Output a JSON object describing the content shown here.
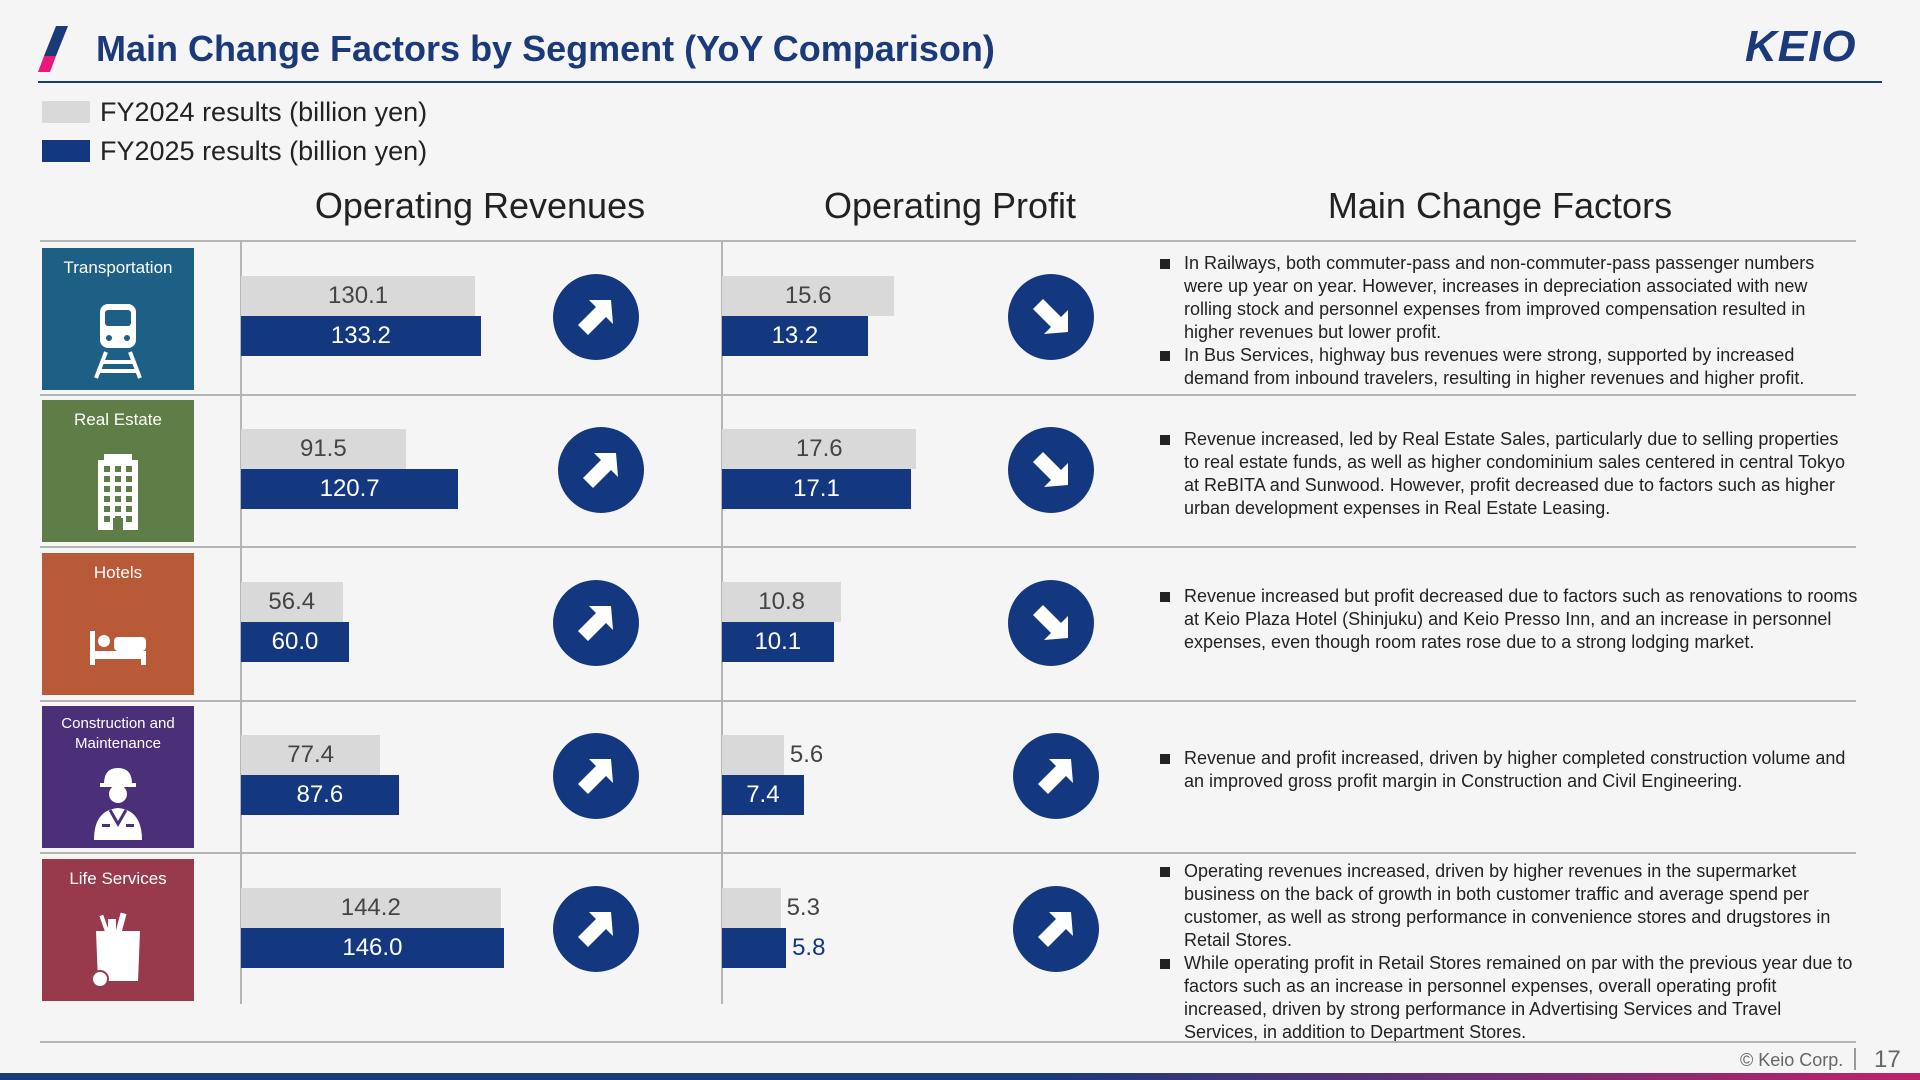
{
  "header": {
    "title": "Main Change Factors by Segment (YoY Comparison)",
    "logo_text": "KEIO"
  },
  "legend": [
    {
      "label": "FY2024 results (billion yen)",
      "color": "#d9d9d9"
    },
    {
      "label": "FY2025 results (billion yen)",
      "color": "#14387f"
    }
  ],
  "columns": {
    "revenues": "Operating Revenues",
    "profit": "Operating Profit",
    "factors": "Main Change Factors"
  },
  "chart_data": {
    "type": "bar",
    "orientation": "horizontal",
    "categories": [
      "Transportation",
      "Real Estate",
      "Hotels",
      "Construction and Maintenance",
      "Life Services"
    ],
    "operating_revenues": {
      "series": [
        {
          "name": "FY2024 results (billion yen)",
          "values": [
            130.1,
            91.5,
            56.4,
            77.4,
            144.2
          ]
        },
        {
          "name": "FY2025 results (billion yen)",
          "values": [
            133.2,
            120.7,
            60.0,
            87.6,
            146.0
          ]
        }
      ],
      "direction": [
        "up",
        "up",
        "up",
        "up",
        "up"
      ]
    },
    "operating_profit": {
      "series": [
        {
          "name": "FY2024 results (billion yen)",
          "values": [
            15.6,
            17.6,
            10.8,
            5.6,
            5.3
          ]
        },
        {
          "name": "FY2025 results (billion yen)",
          "values": [
            13.2,
            17.1,
            10.1,
            7.4,
            5.8
          ]
        }
      ],
      "direction": [
        "down",
        "down",
        "down",
        "up",
        "up"
      ]
    }
  },
  "segments": [
    {
      "label": "Transportation",
      "color": "#1e5f85",
      "icon": "train-icon",
      "rev": [
        "130.1",
        "133.2"
      ],
      "op": [
        "15.6",
        "13.2"
      ],
      "factors": [
        "In Railways, both commuter-pass and non-commuter-pass passenger numbers were up year on year. However, increases in depreciation associated with new rolling stock and personnel expenses from improved compensation resulted in higher revenues but lower profit.",
        "In Bus Services, highway bus revenues were strong, supported by increased demand from inbound travelers, resulting in higher revenues and higher profit."
      ]
    },
    {
      "label": "Real Estate",
      "color": "#5e7d47",
      "icon": "building-icon",
      "rev": [
        "91.5",
        "120.7"
      ],
      "op": [
        "17.6",
        "17.1"
      ],
      "factors": [
        "Revenue increased, led by Real Estate Sales, particularly due to selling properties to real estate funds, as well as higher condominium sales centered in central Tokyo at ReBITA and Sunwood. However, profit decreased due to factors such as higher urban development expenses in Real Estate Leasing."
      ]
    },
    {
      "label": "Hotels",
      "color": "#b85a37",
      "icon": "bed-icon",
      "rev": [
        "56.4",
        "60.0"
      ],
      "op": [
        "10.8",
        "10.1"
      ],
      "factors": [
        "Revenue increased but profit decreased due to factors such as renovations to rooms at Keio Plaza Hotel (Shinjuku) and Keio Presso Inn, and an increase in personnel expenses, even though room rates rose due to a strong lodging market."
      ]
    },
    {
      "label": "Construction and Maintenance",
      "color": "#4b3079",
      "icon": "worker-icon",
      "rev": [
        "77.4",
        "87.6"
      ],
      "op": [
        "5.6",
        "7.4"
      ],
      "factors": [
        "Revenue and profit increased, driven by higher completed construction volume and an improved gross profit margin in Construction and Civil Engineering."
      ]
    },
    {
      "label": "Life Services",
      "color": "#993a4c",
      "icon": "grocery-bag-icon",
      "rev": [
        "144.2",
        "146.0"
      ],
      "op": [
        "5.3",
        "5.8"
      ],
      "factors": [
        "Operating revenues increased, driven by higher revenues in the supermarket business on the back of growth in both customer traffic and average spend per customer, as well as strong performance in convenience stores and drugstores in Retail Stores.",
        "While operating profit in Retail Stores remained on par with the previous year due to factors such as an increase in personnel expenses, overall operating profit increased, driven by strong performance in Advertising Services and Travel Services, in addition to Department Stores."
      ]
    }
  ],
  "footer": {
    "copyright": "© Keio Corp.",
    "page": "17"
  }
}
